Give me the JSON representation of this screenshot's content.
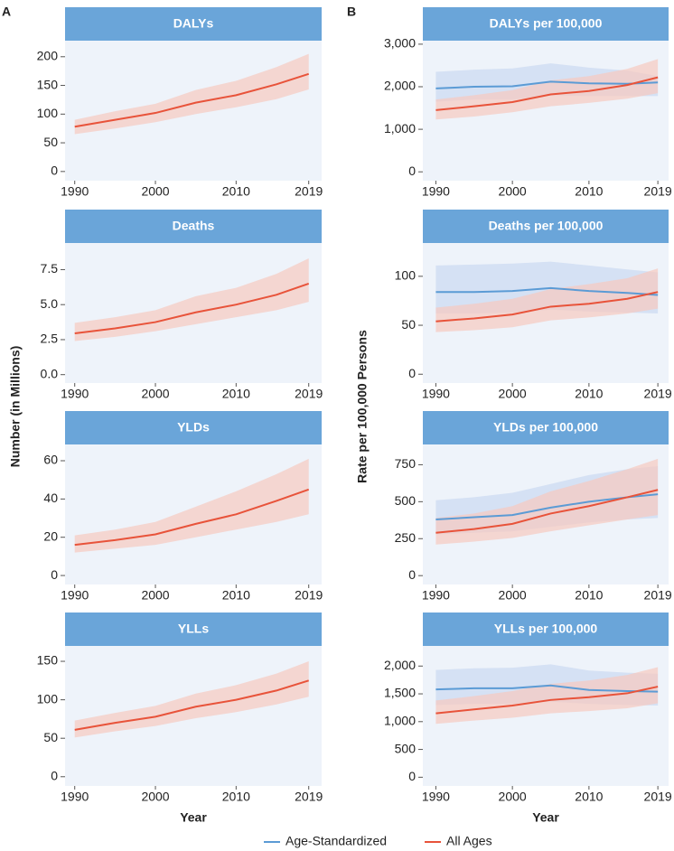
{
  "panels": [
    {
      "label": "A",
      "ylabel": "Number (in Millions)"
    },
    {
      "label": "B",
      "ylabel": "Rate per 100,000 Persons"
    }
  ],
  "chart_data": [
    {
      "type": "line",
      "title": "DALYs",
      "x": [
        1990,
        1995,
        2000,
        2005,
        2010,
        2015,
        2019
      ],
      "xlim": [
        1988.8,
        2020.6
      ],
      "xticks": [
        1990,
        2000,
        2010,
        2019
      ],
      "ylim": [
        -16,
        228
      ],
      "yticks": [
        0,
        50,
        100,
        150,
        200
      ],
      "series": [
        {
          "name": "All Ages",
          "color": "#e8533a",
          "band_color": "#f6c9bf",
          "values": [
            78,
            90,
            102,
            120,
            133,
            152,
            170
          ],
          "lower": [
            65,
            75,
            86,
            100,
            112,
            126,
            143
          ],
          "upper": [
            90,
            105,
            118,
            142,
            158,
            182,
            205
          ]
        }
      ]
    },
    {
      "type": "line",
      "title": "Deaths",
      "x": [
        1990,
        1995,
        2000,
        2005,
        2010,
        2015,
        2019
      ],
      "xlim": [
        1988.8,
        2020.6
      ],
      "xticks": [
        1990,
        2000,
        2010,
        2019
      ],
      "ylim": [
        -0.6,
        9.4
      ],
      "yticks": [
        {
          "value": 0,
          "label": "0.0"
        },
        2.5,
        {
          "value": 5,
          "label": "5.0"
        },
        7.5
      ],
      "series": [
        {
          "name": "All Ages",
          "color": "#e8533a",
          "band_color": "#f6c9bf",
          "values": [
            2.95,
            3.3,
            3.75,
            4.45,
            5.0,
            5.7,
            6.5
          ],
          "lower": [
            2.4,
            2.7,
            3.1,
            3.6,
            4.1,
            4.6,
            5.2
          ],
          "upper": [
            3.7,
            4.1,
            4.6,
            5.6,
            6.2,
            7.2,
            8.3
          ]
        }
      ]
    },
    {
      "type": "line",
      "title": "YLDs",
      "x": [
        1990,
        1995,
        2000,
        2005,
        2010,
        2015,
        2019
      ],
      "xlim": [
        1988.8,
        2020.6
      ],
      "xticks": [
        1990,
        2000,
        2010,
        2019
      ],
      "ylim": [
        -4.7,
        68.5
      ],
      "yticks": [
        0,
        20,
        40,
        60
      ],
      "series": [
        {
          "name": "All Ages",
          "color": "#e8533a",
          "band_color": "#f6c9bf",
          "values": [
            16,
            18.5,
            21.5,
            27,
            32,
            39,
            45
          ],
          "lower": [
            12,
            14,
            16,
            20,
            24,
            28,
            32
          ],
          "upper": [
            21,
            24,
            28,
            36,
            44,
            53,
            61
          ]
        }
      ]
    },
    {
      "type": "line",
      "title": "YLLs",
      "xlabel": "Year",
      "x": [
        1990,
        1995,
        2000,
        2005,
        2010,
        2015,
        2019
      ],
      "xlim": [
        1988.8,
        2020.6
      ],
      "xticks": [
        1990,
        2000,
        2010,
        2019
      ],
      "ylim": [
        -12,
        170
      ],
      "yticks": [
        0,
        50,
        100,
        150
      ],
      "series": [
        {
          "name": "All Ages",
          "color": "#e8533a",
          "band_color": "#f6c9bf",
          "values": [
            61,
            70,
            78,
            91,
            100,
            112,
            125
          ],
          "lower": [
            51,
            59,
            66,
            76,
            84,
            94,
            104
          ],
          "upper": [
            73,
            83,
            92,
            108,
            119,
            134,
            150
          ]
        }
      ]
    },
    {
      "type": "line",
      "title": "DALYs per 100,000",
      "x": [
        1990,
        1995,
        2000,
        2005,
        2010,
        2015,
        2019
      ],
      "xlim": [
        1988.3,
        2020.4
      ],
      "xticks": [
        1990,
        2000,
        2010,
        2019
      ],
      "ylim": [
        -208,
        3083
      ],
      "yticks": [
        0,
        {
          "value": 1000,
          "label": "1,000"
        },
        {
          "value": 2000,
          "label": "2,000"
        },
        {
          "value": 3000,
          "label": "3,000"
        }
      ],
      "series": [
        {
          "name": "Age-Standardized",
          "color": "#5b9bd5",
          "band_color": "#cbd9f1",
          "values": [
            1960,
            2000,
            2010,
            2120,
            2080,
            2070,
            2100
          ],
          "lower": [
            1650,
            1700,
            1700,
            1800,
            1780,
            1780,
            1780
          ],
          "upper": [
            2350,
            2400,
            2430,
            2550,
            2450,
            2380,
            2250
          ]
        },
        {
          "name": "All Ages",
          "color": "#e8533a",
          "band_color": "#f6c9bf",
          "values": [
            1450,
            1540,
            1640,
            1820,
            1900,
            2040,
            2220
          ],
          "lower": [
            1230,
            1300,
            1400,
            1540,
            1620,
            1720,
            1850
          ],
          "upper": [
            1700,
            1800,
            1920,
            2150,
            2250,
            2420,
            2650
          ]
        }
      ]
    },
    {
      "type": "line",
      "title": "Deaths per 100,000",
      "x": [
        1990,
        1995,
        2000,
        2005,
        2010,
        2015,
        2019
      ],
      "xlim": [
        1988.3,
        2020.4
      ],
      "xticks": [
        1990,
        2000,
        2010,
        2019
      ],
      "ylim": [
        -9,
        134
      ],
      "yticks": [
        0,
        50,
        100
      ],
      "series": [
        {
          "name": "Age-Standardized",
          "color": "#5b9bd5",
          "band_color": "#cbd9f1",
          "values": [
            84,
            84,
            85,
            88,
            85,
            83,
            81
          ],
          "lower": [
            62,
            62,
            63,
            66,
            64,
            63,
            62
          ],
          "upper": [
            111,
            112,
            113,
            115,
            111,
            107,
            104
          ]
        },
        {
          "name": "All Ages",
          "color": "#e8533a",
          "band_color": "#f6c9bf",
          "values": [
            54,
            57,
            61,
            69,
            72,
            77,
            84
          ],
          "lower": [
            43,
            45,
            48,
            55,
            58,
            62,
            67
          ],
          "upper": [
            68,
            72,
            77,
            87,
            92,
            98,
            108
          ]
        }
      ]
    },
    {
      "type": "line",
      "title": "YLDs per 100,000",
      "x": [
        1990,
        1995,
        2000,
        2005,
        2010,
        2015,
        2019
      ],
      "xlim": [
        1988.3,
        2020.4
      ],
      "xticks": [
        1990,
        2000,
        2010,
        2019
      ],
      "ylim": [
        -60,
        887
      ],
      "yticks": [
        0,
        250,
        500,
        750
      ],
      "series": [
        {
          "name": "Age-Standardized",
          "color": "#5b9bd5",
          "band_color": "#cbd9f1",
          "values": [
            380,
            395,
            410,
            460,
            500,
            530,
            550
          ],
          "lower": [
            280,
            290,
            300,
            330,
            360,
            380,
            390
          ],
          "upper": [
            510,
            530,
            560,
            620,
            680,
            720,
            740
          ]
        },
        {
          "name": "All Ages",
          "color": "#e8533a",
          "band_color": "#f6c9bf",
          "values": [
            290,
            315,
            350,
            420,
            470,
            530,
            580
          ],
          "lower": [
            210,
            230,
            255,
            300,
            340,
            380,
            410
          ],
          "upper": [
            390,
            420,
            470,
            570,
            640,
            720,
            790
          ]
        }
      ]
    },
    {
      "type": "line",
      "title": "YLLs per 100,000",
      "xlabel": "Year",
      "x": [
        1990,
        1995,
        2000,
        2005,
        2010,
        2015,
        2019
      ],
      "xlim": [
        1988.3,
        2020.4
      ],
      "xticks": [
        1990,
        2000,
        2010,
        2019
      ],
      "ylim": [
        -157,
        2362
      ],
      "yticks": [
        0,
        500,
        {
          "value": 1000,
          "label": "1,000"
        },
        {
          "value": 1500,
          "label": "1,500"
        },
        {
          "value": 2000,
          "label": "2,000"
        }
      ],
      "series": [
        {
          "name": "Age-Standardized",
          "color": "#5b9bd5",
          "band_color": "#cbd9f1",
          "values": [
            1580,
            1600,
            1600,
            1650,
            1570,
            1550,
            1540
          ],
          "lower": [
            1300,
            1320,
            1320,
            1360,
            1320,
            1300,
            1290
          ],
          "upper": [
            1930,
            1960,
            1970,
            2030,
            1920,
            1880,
            1860
          ]
        },
        {
          "name": "All Ages",
          "color": "#e8533a",
          "band_color": "#f6c9bf",
          "values": [
            1150,
            1220,
            1290,
            1390,
            1440,
            1510,
            1630
          ],
          "lower": [
            960,
            1020,
            1070,
            1150,
            1190,
            1240,
            1330
          ],
          "upper": [
            1380,
            1460,
            1550,
            1680,
            1740,
            1840,
            1980
          ]
        }
      ]
    }
  ]
}
